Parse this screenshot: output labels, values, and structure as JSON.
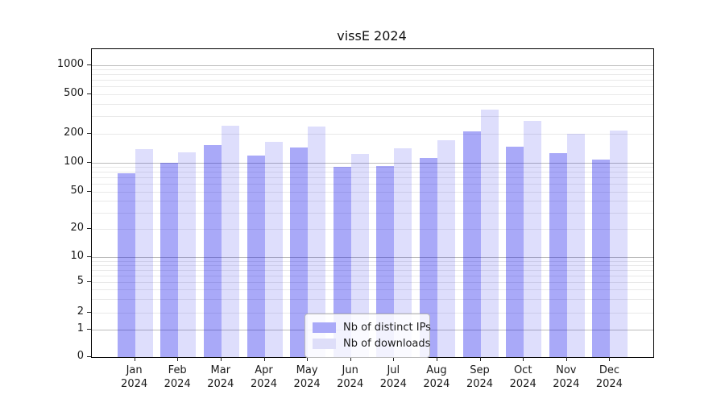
{
  "chart_data": {
    "type": "bar",
    "title": "vissE 2024",
    "year_label": "2024",
    "categories": [
      "Jan",
      "Feb",
      "Mar",
      "Apr",
      "May",
      "Jun",
      "Jul",
      "Aug",
      "Sep",
      "Oct",
      "Nov",
      "Dec"
    ],
    "series": [
      {
        "name": "Nb of distinct IPs",
        "color": "rgba(10,10,235,0.35)",
        "swatch_color": "#a9a9f8",
        "values": [
          78,
          100,
          150,
          118,
          142,
          90,
          91,
          112,
          210,
          147,
          125,
          108
        ]
      },
      {
        "name": "Nb of downloads",
        "color": "rgba(10,10,235,0.135)",
        "swatch_color": "#dedef9",
        "values": [
          138,
          128,
          238,
          165,
          235,
          122,
          140,
          170,
          350,
          270,
          200,
          215
        ]
      }
    ],
    "yticks": [
      0,
      1,
      2,
      5,
      10,
      20,
      50,
      100,
      200,
      500,
      1000
    ],
    "minor_gridlines": [
      2,
      3,
      4,
      5,
      6,
      7,
      8,
      9,
      20,
      30,
      40,
      50,
      60,
      70,
      80,
      90,
      200,
      300,
      400,
      500,
      600,
      700,
      800,
      900
    ],
    "major_gridlines": [
      1,
      10,
      100,
      1000
    ],
    "scale": "symlog",
    "ylim": [
      0,
      1450
    ],
    "grid": "horizontal",
    "legend_position": "lower center",
    "axis_color": "#000000",
    "text_color": "#1a1a1a"
  }
}
